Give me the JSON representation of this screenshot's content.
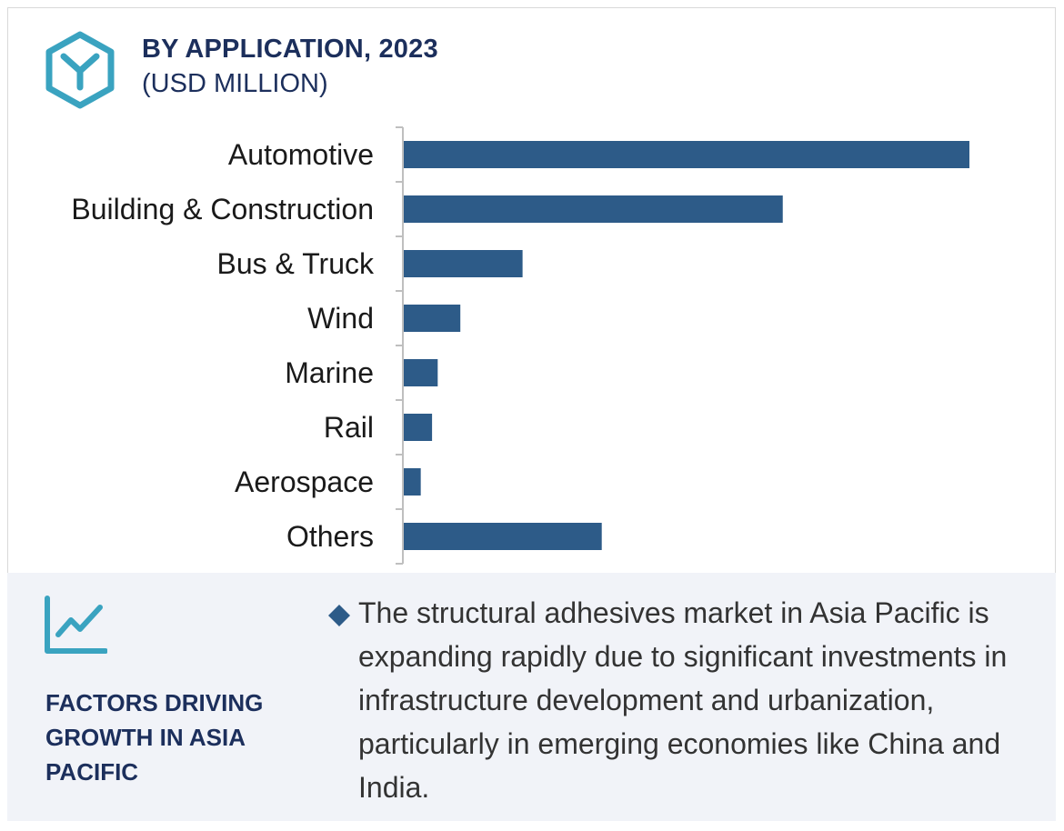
{
  "header": {
    "title": "BY APPLICATION, 2023",
    "subtitle": "(USD MILLION)"
  },
  "chart_data": {
    "type": "bar",
    "orientation": "horizontal",
    "categories": [
      "Automotive",
      "Building & Construction",
      "Bus & Truck",
      "Wind",
      "Marine",
      "Rail",
      "Aerospace",
      "Others"
    ],
    "values": [
      100,
      67,
      21,
      10,
      6,
      5,
      3,
      35
    ],
    "bar_color": "#2d5b88",
    "xlim": [
      0,
      100
    ],
    "grid": false,
    "axis_values_shown": false
  },
  "footer": {
    "heading": "FACTORS DRIVING GROWTH IN ASIA PACIFIC",
    "description": "The structural adhesives market in Asia Pacific is expanding rapidly due to significant investments in infrastructure development and urbanization, particularly in emerging economies like China and India."
  },
  "colors": {
    "accent_teal": "#3aa3c0",
    "heading_navy": "#1c2f5c",
    "bullet_navy": "#2d5b88",
    "footer_bg": "#f1f3f8"
  },
  "icons": {
    "logo": "hexagon-y-icon",
    "trend": "trend-chart-icon",
    "bullet": "diamond-bullet-icon"
  }
}
